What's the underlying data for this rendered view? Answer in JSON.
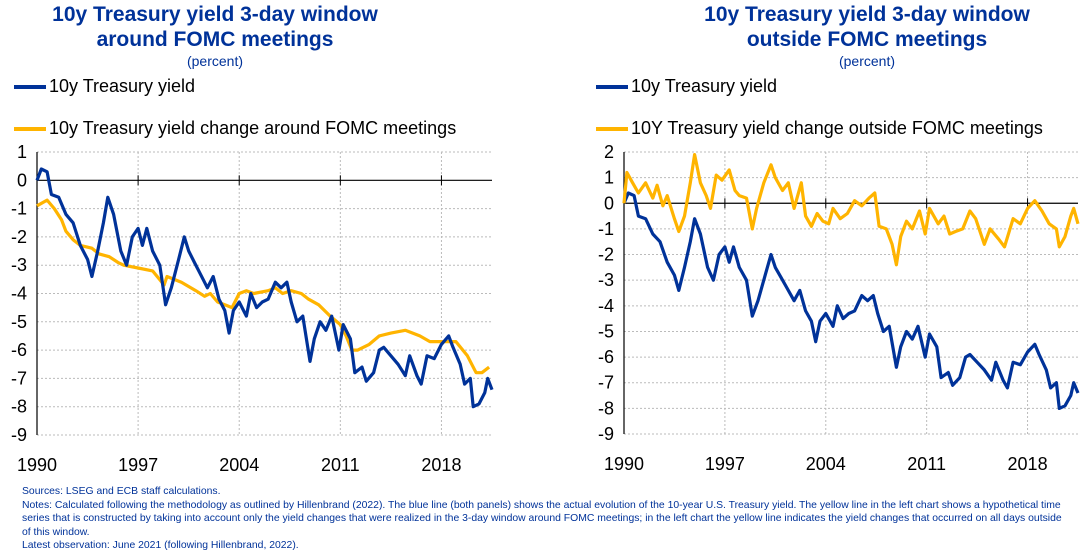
{
  "colors": {
    "blue": "#003299",
    "yellow": "#FFB400"
  },
  "chart_data": [
    {
      "type": "line",
      "title_line1": "10y Treasury yield 3-day window",
      "title_line2": "around FOMC meetings",
      "subtitle": "(percent)",
      "xlabel": "",
      "ylabel": "",
      "xlim": [
        1990,
        2021.5
      ],
      "ylim": [
        -9,
        1
      ],
      "xticks": [
        "1990",
        "1997",
        "2004",
        "2011",
        "2018"
      ],
      "yticks": [
        "1",
        "0",
        "-1",
        "-2",
        "-3",
        "-4",
        "-5",
        "-6",
        "-7",
        "-8",
        "-9"
      ],
      "grid": true,
      "legend": "top-left",
      "series": [
        {
          "name": "10y Treasury yield",
          "color": "#003299",
          "x": [
            1990,
            1990.3,
            1990.7,
            1991,
            1991.5,
            1992,
            1992.5,
            1993,
            1993.5,
            1993.8,
            1994.2,
            1994.6,
            1994.9,
            1995.3,
            1995.8,
            1996.2,
            1996.6,
            1997,
            1997.3,
            1997.6,
            1998,
            1998.5,
            1998.9,
            1999.3,
            1999.8,
            2000.2,
            2000.5,
            2000.9,
            2001.3,
            2001.8,
            2002.2,
            2002.6,
            2003,
            2003.3,
            2003.6,
            2004,
            2004.5,
            2004.8,
            2005.2,
            2005.6,
            2006,
            2006.5,
            2006.9,
            2007.3,
            2007.6,
            2008,
            2008.4,
            2008.9,
            2009.2,
            2009.6,
            2010,
            2010.4,
            2010.9,
            2011.2,
            2011.7,
            2012,
            2012.5,
            2012.8,
            2013.3,
            2013.7,
            2014,
            2014.5,
            2015,
            2015.5,
            2015.8,
            2016.3,
            2016.6,
            2017,
            2017.5,
            2018,
            2018.5,
            2018.8,
            2019.3,
            2019.6,
            2020,
            2020.2,
            2020.6,
            2021,
            2021.2,
            2021.5
          ],
          "y": [
            0,
            0.4,
            0.3,
            -0.5,
            -0.6,
            -1.2,
            -1.5,
            -2.3,
            -2.8,
            -3.4,
            -2.5,
            -1.5,
            -0.6,
            -1.2,
            -2.5,
            -3.0,
            -2.0,
            -1.7,
            -2.3,
            -1.7,
            -2.5,
            -3.0,
            -4.4,
            -3.8,
            -2.8,
            -2.0,
            -2.5,
            -2.9,
            -3.3,
            -3.8,
            -3.4,
            -4.2,
            -4.6,
            -5.4,
            -4.6,
            -4.3,
            -4.8,
            -4.0,
            -4.5,
            -4.3,
            -4.2,
            -3.6,
            -3.8,
            -3.6,
            -4.3,
            -5.0,
            -4.8,
            -6.4,
            -5.6,
            -5.0,
            -5.3,
            -4.8,
            -6.0,
            -5.1,
            -5.6,
            -6.8,
            -6.6,
            -7.1,
            -6.8,
            -6.0,
            -5.9,
            -6.2,
            -6.5,
            -6.9,
            -6.2,
            -6.9,
            -7.2,
            -6.2,
            -6.3,
            -5.8,
            -5.5,
            -5.9,
            -6.5,
            -7.2,
            -7.0,
            -8.0,
            -7.9,
            -7.5,
            -7.0,
            -7.4
          ]
        },
        {
          "name": "10y Treasury yield change around FOMC meetings",
          "color": "#FFB400",
          "x": [
            1990,
            1990.7,
            1991.2,
            1991.7,
            1992,
            1992.5,
            1993,
            1993.8,
            1994.3,
            1995,
            1995.6,
            1996,
            1997,
            1998,
            1998.8,
            1999,
            2000,
            2001,
            2001.6,
            2002,
            2002.5,
            2003,
            2003.5,
            2004,
            2004.5,
            2005,
            2006,
            2006.5,
            2007,
            2007.6,
            2008.3,
            2008.8,
            2009.5,
            2010.3,
            2011,
            2011.4,
            2011.8,
            2012.2,
            2013,
            2013.7,
            2014.5,
            2015.5,
            2016.5,
            2017.2,
            2018,
            2019,
            2019.8,
            2020.4,
            2020.8,
            2021.3
          ],
          "y": [
            -0.9,
            -0.7,
            -1.0,
            -1.4,
            -1.8,
            -2.1,
            -2.3,
            -2.4,
            -2.6,
            -2.7,
            -2.9,
            -3.0,
            -3.1,
            -3.2,
            -3.7,
            -3.4,
            -3.6,
            -3.9,
            -4.1,
            -4.0,
            -4.3,
            -4.4,
            -4.5,
            -4.0,
            -3.9,
            -4.0,
            -3.9,
            -3.8,
            -4.0,
            -3.9,
            -4.0,
            -4.2,
            -4.4,
            -4.8,
            -5.1,
            -5.5,
            -6.0,
            -6.0,
            -5.8,
            -5.5,
            -5.4,
            -5.3,
            -5.5,
            -5.7,
            -5.7,
            -5.7,
            -6.2,
            -6.8,
            -6.8,
            -6.6
          ]
        }
      ]
    },
    {
      "type": "line",
      "title_line1": "10y Treasury yield 3-day window",
      "title_line2": "outside FOMC meetings",
      "subtitle": "(percent)",
      "xlabel": "",
      "ylabel": "",
      "xlim": [
        1990,
        2021.5
      ],
      "ylim": [
        -9,
        2
      ],
      "xticks": [
        "1990",
        "1997",
        "2004",
        "2011",
        "2018"
      ],
      "yticks": [
        "2",
        "1",
        "0",
        "-1",
        "-2",
        "-3",
        "-4",
        "-5",
        "-6",
        "-7",
        "-8",
        "-9"
      ],
      "grid": true,
      "legend": "top-left",
      "series": [
        {
          "name": "10y Treasury yield",
          "color": "#003299",
          "same_as": "left panel blue series"
        },
        {
          "name": "10Y Treasury yield change outside FOMC meetings",
          "color": "#FFB400",
          "x": [
            1990,
            1990.2,
            1990.6,
            1991,
            1991.5,
            1992,
            1992.3,
            1992.7,
            1993,
            1993.5,
            1993.8,
            1994.2,
            1994.6,
            1994.9,
            1995.3,
            1995.7,
            1996,
            1996.4,
            1996.8,
            1997.3,
            1997.7,
            1998,
            1998.5,
            1998.9,
            1999.2,
            1999.7,
            2000.2,
            2000.5,
            2001,
            2001.4,
            2001.8,
            2002.3,
            2002.6,
            2003,
            2003.4,
            2003.8,
            2004.2,
            2004.5,
            2005,
            2005.5,
            2006,
            2006.5,
            2007,
            2007.4,
            2007.7,
            2008.2,
            2008.6,
            2008.9,
            2009.2,
            2009.6,
            2010,
            2010.5,
            2010.9,
            2011.2,
            2011.8,
            2012.2,
            2012.6,
            2013,
            2013.5,
            2014,
            2014.4,
            2015,
            2015.4,
            2016,
            2016.4,
            2017,
            2017.5,
            2018,
            2018.5,
            2019,
            2019.5,
            2020,
            2020.2,
            2020.6,
            2021,
            2021.2,
            2021.5
          ],
          "y": [
            0,
            1.2,
            0.8,
            0.4,
            0.8,
            0.2,
            0.7,
            -0.1,
            0.3,
            -0.6,
            -1.1,
            -0.5,
            0.8,
            1.9,
            0.8,
            0.3,
            -0.2,
            1.1,
            0.9,
            1.3,
            0.5,
            0.3,
            0.2,
            -1.0,
            -0.2,
            0.8,
            1.5,
            1.0,
            0.5,
            0.8,
            -0.2,
            0.8,
            -0.5,
            -0.9,
            -0.4,
            -0.7,
            -0.8,
            -0.2,
            -0.6,
            -0.4,
            0.1,
            -0.1,
            0.2,
            0.4,
            -0.9,
            -1.0,
            -1.6,
            -2.4,
            -1.3,
            -0.7,
            -1.0,
            -0.3,
            -1.2,
            -0.2,
            -0.8,
            -0.5,
            -1.2,
            -1.1,
            -1.0,
            -0.3,
            -0.6,
            -1.6,
            -1.0,
            -1.4,
            -1.7,
            -0.6,
            -0.8,
            -0.2,
            0.1,
            -0.3,
            -0.8,
            -1.0,
            -1.7,
            -1.3,
            -0.5,
            -0.2,
            -0.8
          ]
        }
      ]
    }
  ],
  "notes": {
    "sources": "Sources: LSEG and ECB staff calculations.",
    "notes": "Notes: Calculated following the methodology as outlined by Hillenbrand (2022). The blue line (both panels) shows the actual evolution of the 10-year U.S. Treasury yield. The yellow line in the left chart shows a hypothetical time series that is constructed by taking into account only the yield changes that were realized in the 3-day window around FOMC meetings; in the left chart the yellow line indicates the yield changes that occurred on all days outside of this window.",
    "latest": "Latest observation: June 2021 (following Hillenbrand, 2022)."
  }
}
